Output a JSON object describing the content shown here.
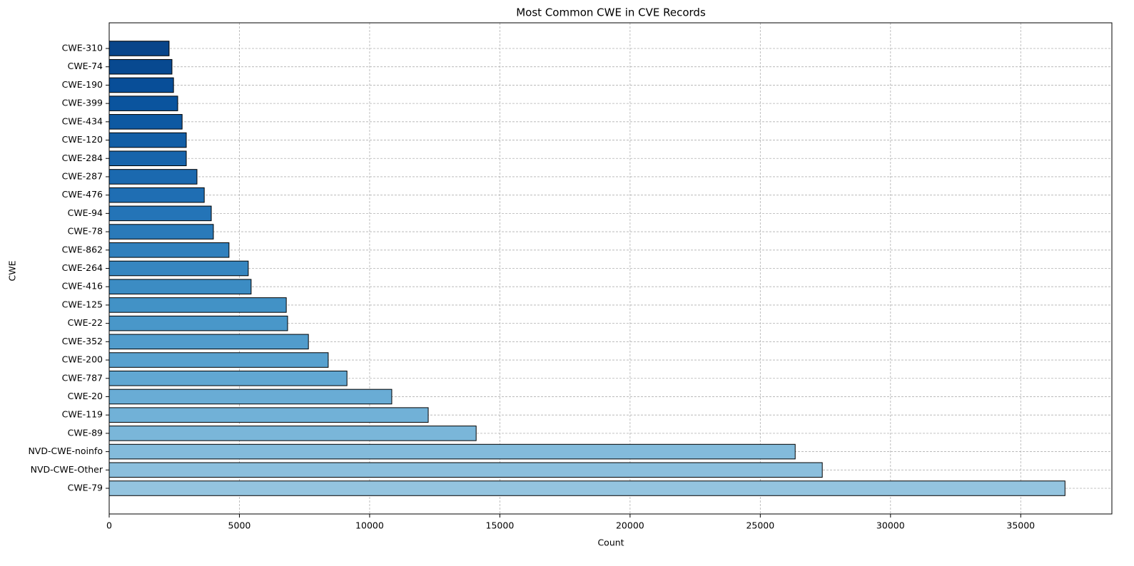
{
  "chart_data": {
    "type": "barh",
    "title": "Most Common CWE in CVE Records",
    "xlabel": "Count",
    "ylabel": "CWE",
    "categories": [
      "CWE-79",
      "NVD-CWE-Other",
      "NVD-CWE-noinfo",
      "CWE-89",
      "CWE-119",
      "CWE-20",
      "CWE-787",
      "CWE-200",
      "CWE-352",
      "CWE-22",
      "CWE-125",
      "CWE-416",
      "CWE-264",
      "CWE-862",
      "CWE-78",
      "CWE-94",
      "CWE-476",
      "CWE-287",
      "CWE-284",
      "CWE-120",
      "CWE-434",
      "CWE-399",
      "CWE-190",
      "CWE-74",
      "CWE-310"
    ],
    "values": [
      36700,
      27380,
      26340,
      14090,
      12250,
      10850,
      9130,
      8410,
      7650,
      6850,
      6800,
      5450,
      5340,
      4600,
      4000,
      3920,
      3650,
      3370,
      2960,
      2960,
      2800,
      2630,
      2470,
      2410,
      2300
    ],
    "colors": [
      "#94c4df",
      "#8bbfdd",
      "#83bbdb",
      "#7ab6d9",
      "#71b1d7",
      "#69acd5",
      "#61a7d2",
      "#58a1cf",
      "#519ccc",
      "#4997c9",
      "#4292c6",
      "#3c8cc3",
      "#3686c0",
      "#3080bd",
      "#2a7ab9",
      "#2474b7",
      "#1f6eb3",
      "#1b69af",
      "#1764ab",
      "#125ea6",
      "#0e59a2",
      "#0a549e",
      "#084e98",
      "#084990",
      "#08458a"
    ],
    "edgecolor": "#000000",
    "xlim": [
      0,
      38500
    ],
    "xticks": [
      0,
      5000,
      10000,
      15000,
      20000,
      25000,
      30000,
      35000
    ],
    "grid": true
  }
}
